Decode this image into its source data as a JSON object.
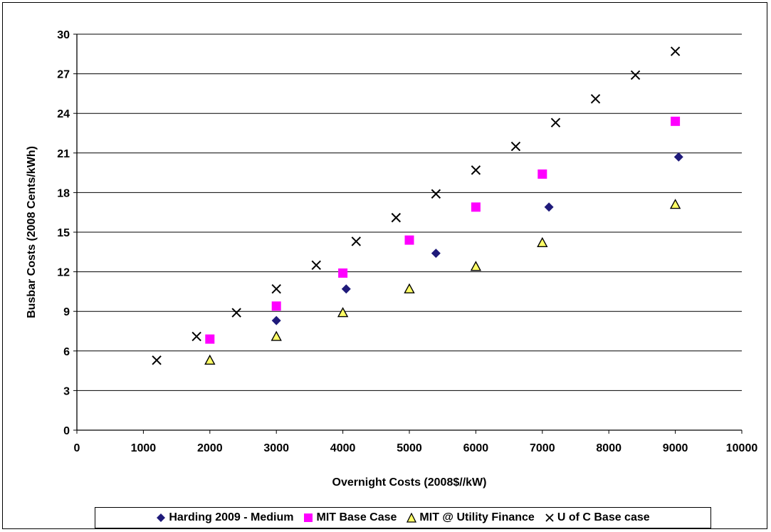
{
  "chart_data": {
    "type": "scatter",
    "xlabel": "Overnight Costs (2008$//kW)",
    "ylabel": "Busbar Costs (2008 Cents/kWh)",
    "xlim": [
      0,
      10000
    ],
    "ylim": [
      0,
      30
    ],
    "xticks": [
      0,
      1000,
      2000,
      3000,
      4000,
      5000,
      6000,
      7000,
      8000,
      9000,
      10000
    ],
    "yticks": [
      0,
      3,
      6,
      9,
      12,
      15,
      18,
      21,
      24,
      27,
      30
    ],
    "grid": "horizontal",
    "legend_position": "bottom",
    "series": [
      {
        "name": "Harding 2009 - Medium",
        "marker": "diamond",
        "color": "#1f1a7a",
        "points": [
          [
            3000,
            8.3
          ],
          [
            4050,
            10.7
          ],
          [
            5400,
            13.4
          ],
          [
            7100,
            16.9
          ],
          [
            9050,
            20.7
          ]
        ]
      },
      {
        "name": "MIT Base Case",
        "marker": "square",
        "color": "#ff00ff",
        "points": [
          [
            2000,
            6.9
          ],
          [
            3000,
            9.4
          ],
          [
            4000,
            11.9
          ],
          [
            5000,
            14.4
          ],
          [
            6000,
            16.9
          ],
          [
            7000,
            19.4
          ],
          [
            9000,
            23.4
          ]
        ]
      },
      {
        "name": "MIT @ Utility Finance",
        "marker": "triangle",
        "color": "#ffff66",
        "points": [
          [
            2000,
            5.3
          ],
          [
            3000,
            7.1
          ],
          [
            4000,
            8.9
          ],
          [
            5000,
            10.7
          ],
          [
            6000,
            12.4
          ],
          [
            7000,
            14.2
          ],
          [
            9000,
            17.1
          ]
        ]
      },
      {
        "name": "U of C Base case",
        "marker": "x",
        "color": "#000000",
        "points": [
          [
            1200,
            5.3
          ],
          [
            1800,
            7.1
          ],
          [
            2400,
            8.9
          ],
          [
            3000,
            10.7
          ],
          [
            3600,
            12.5
          ],
          [
            4200,
            14.3
          ],
          [
            4800,
            16.1
          ],
          [
            5400,
            17.9
          ],
          [
            6000,
            19.7
          ],
          [
            6600,
            21.5
          ],
          [
            7200,
            23.3
          ],
          [
            7800,
            25.1
          ],
          [
            8400,
            26.9
          ],
          [
            9000,
            28.7
          ]
        ]
      }
    ]
  }
}
